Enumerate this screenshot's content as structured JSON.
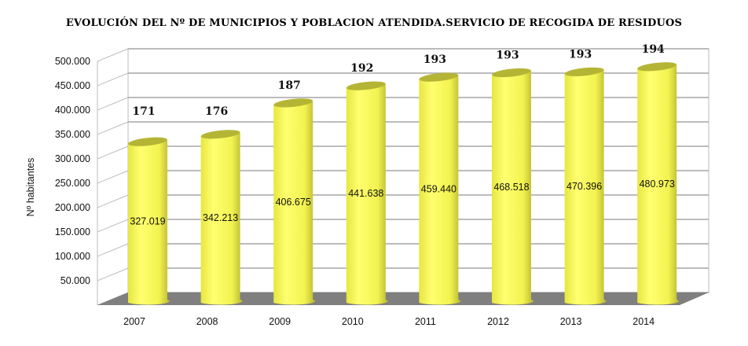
{
  "chart_data": {
    "type": "bar",
    "title": "EVOLUCIÓN DEL Nº DE MUNICIPIOS Y POBLACION ATENDIDA.SERVICIO DE RECOGIDA DE RESIDUOS",
    "xlabel": "",
    "ylabel": "Nº habitantes",
    "ylim": [
      0,
      500000
    ],
    "yticks": [
      "50.000",
      "100.000",
      "150.000",
      "200.000",
      "250.000",
      "300.000",
      "350.000",
      "400.000",
      "450.000",
      "500.000"
    ],
    "categories": [
      "2007",
      "2008",
      "2009",
      "2010",
      "2011",
      "2012",
      "2013",
      "2014"
    ],
    "series": [
      {
        "name": "Población atendida",
        "values": [
          327019,
          342213,
          406675,
          441638,
          459440,
          468518,
          470396,
          480973
        ],
        "labels": [
          "327.019",
          "342.213",
          "406.675",
          "441.638",
          "459.440",
          "468.518",
          "470.396",
          "480.973"
        ]
      },
      {
        "name": "Nº de municipios",
        "values": [
          171,
          176,
          187,
          192,
          193,
          193,
          193,
          194
        ],
        "labels": [
          "171",
          "176",
          "187",
          "192",
          "193",
          "193",
          "193",
          "194"
        ]
      }
    ],
    "grid": true,
    "colors": {
      "bar": "#f5f55a",
      "floor": "#7f7f7f",
      "grid": "#a6a6a6"
    }
  }
}
